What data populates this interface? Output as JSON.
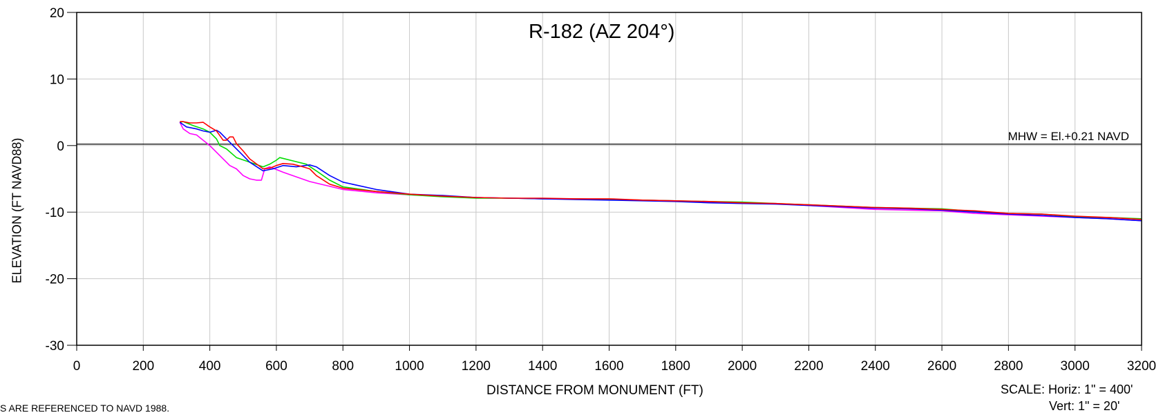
{
  "chart_data": {
    "type": "line",
    "title": "R-182 (AZ 204°)",
    "xlabel": "DISTANCE FROM MONUMENT (FT)",
    "ylabel": "ELEVATION (FT NAVD88)",
    "xlim": [
      0,
      3200
    ],
    "ylim": [
      -30,
      20
    ],
    "x_ticks": [
      "0",
      "200",
      "400",
      "600",
      "800",
      "1000",
      "1200",
      "1400",
      "1600",
      "1800",
      "2000",
      "2200",
      "2400",
      "2600",
      "2800",
      "3000",
      "3200"
    ],
    "y_ticks": [
      "20",
      "10",
      "0",
      "-10",
      "-20",
      "-30"
    ],
    "grid": true,
    "legend": "none",
    "reference_line": {
      "y": 0.21,
      "label": "MHW = El.+0.21 NAVD"
    },
    "series": [
      {
        "color": "#ff00ff",
        "x": [
          310,
          320,
          340,
          360,
          380,
          400,
          430,
          460,
          480,
          500,
          520,
          540,
          555,
          565,
          580,
          620,
          700,
          800,
          900,
          1000,
          1100,
          1200,
          1300,
          1400,
          1500,
          1600,
          1700,
          1800,
          1900,
          2000,
          2100,
          2200,
          2300,
          2400,
          2500,
          2600,
          2700,
          2800,
          2900,
          3000,
          3100,
          3200
        ],
        "y": [
          3.5,
          2.5,
          1.8,
          1.6,
          0.8,
          0.0,
          -1.5,
          -3.0,
          -3.5,
          -4.5,
          -5.0,
          -5.2,
          -5.2,
          -3.5,
          -3.2,
          -4.0,
          -5.4,
          -6.6,
          -7.1,
          -7.4,
          -7.6,
          -7.8,
          -7.9,
          -8.0,
          -8.0,
          -8.1,
          -8.2,
          -8.3,
          -8.5,
          -8.7,
          -8.7,
          -9.0,
          -9.3,
          -9.6,
          -9.7,
          -9.8,
          -10.2,
          -10.4,
          -10.6,
          -10.8,
          -11.0,
          -11.3
        ]
      },
      {
        "color": "#00dd00",
        "x": [
          310,
          320,
          350,
          380,
          400,
          420,
          430,
          450,
          480,
          520,
          560,
          580,
          600,
          610,
          650,
          690,
          720,
          760,
          800,
          900,
          1000,
          1100,
          1200,
          1300,
          1400,
          1500,
          1600,
          1700,
          1800,
          1900,
          2000,
          2100,
          2200,
          2300,
          2400,
          2500,
          2600,
          2700,
          2800,
          2900,
          3000,
          3100,
          3200
        ],
        "y": [
          3.5,
          3.6,
          3.0,
          2.5,
          2.0,
          1.0,
          0.0,
          -0.5,
          -1.8,
          -2.5,
          -3.2,
          -2.8,
          -2.2,
          -1.8,
          -2.3,
          -2.8,
          -3.8,
          -5.2,
          -6.2,
          -6.9,
          -7.4,
          -7.7,
          -7.9,
          -7.9,
          -8.0,
          -8.0,
          -8.1,
          -8.2,
          -8.3,
          -8.4,
          -8.5,
          -8.7,
          -8.9,
          -9.1,
          -9.3,
          -9.4,
          -9.5,
          -9.9,
          -10.2,
          -10.3,
          -10.7,
          -10.8,
          -11.0
        ]
      },
      {
        "color": "#0000ff",
        "x": [
          310,
          330,
          360,
          380,
          400,
          420,
          430,
          450,
          480,
          520,
          560,
          590,
          620,
          660,
          700,
          720,
          760,
          800,
          900,
          1000,
          1100,
          1200,
          1300,
          1400,
          1500,
          1600,
          1700,
          1800,
          1900,
          2000,
          2100,
          2200,
          2300,
          2400,
          2500,
          2600,
          2700,
          2800,
          2900,
          3000,
          3100,
          3200
        ],
        "y": [
          3.5,
          2.8,
          2.5,
          2.2,
          2.0,
          2.3,
          2.0,
          1.0,
          -0.5,
          -2.5,
          -3.8,
          -3.5,
          -3.0,
          -3.2,
          -2.9,
          -3.2,
          -4.5,
          -5.5,
          -6.6,
          -7.3,
          -7.5,
          -7.8,
          -7.9,
          -8.0,
          -8.1,
          -8.2,
          -8.3,
          -8.4,
          -8.6,
          -8.7,
          -8.8,
          -9.0,
          -9.2,
          -9.4,
          -9.5,
          -9.7,
          -10.0,
          -10.3,
          -10.5,
          -10.8,
          -11.0,
          -11.3
        ]
      },
      {
        "color": "#ff0000",
        "x": [
          310,
          320,
          340,
          360,
          380,
          400,
          420,
          430,
          440,
          450,
          460,
          470,
          480,
          500,
          520,
          560,
          580,
          600,
          620,
          650,
          680,
          700,
          720,
          760,
          800,
          900,
          1000,
          1100,
          1200,
          1300,
          1400,
          1500,
          1600,
          1700,
          1800,
          1900,
          2000,
          2100,
          2200,
          2300,
          2400,
          2500,
          2600,
          2700,
          2800,
          2900,
          3000,
          3100,
          3200
        ],
        "y": [
          3.6,
          3.6,
          3.4,
          3.4,
          3.5,
          2.8,
          2.2,
          1.5,
          0.8,
          0.8,
          1.3,
          1.3,
          0.3,
          -0.8,
          -2.0,
          -3.5,
          -3.4,
          -3.0,
          -2.7,
          -2.8,
          -3.2,
          -3.5,
          -4.5,
          -5.8,
          -6.4,
          -6.9,
          -7.3,
          -7.6,
          -7.8,
          -7.9,
          -7.9,
          -8.0,
          -8.0,
          -8.2,
          -8.3,
          -8.4,
          -8.6,
          -8.7,
          -8.9,
          -9.1,
          -9.3,
          -9.4,
          -9.6,
          -9.8,
          -10.2,
          -10.3,
          -10.6,
          -10.8,
          -11.1
        ]
      }
    ]
  },
  "labels": {
    "title": "R-182 (AZ 204°)",
    "xlabel": "DISTANCE FROM MONUMENT (FT)",
    "ylabel": "ELEVATION (FT NAVD88)",
    "mhw": "MHW = El.+0.21 NAVD",
    "scale_horiz": "SCALE:  Horiz: 1\" = 400'",
    "scale_vert": "Vert:  1\" = 20'",
    "footnote": "S ARE REFERENCED TO NAVD 1988."
  }
}
